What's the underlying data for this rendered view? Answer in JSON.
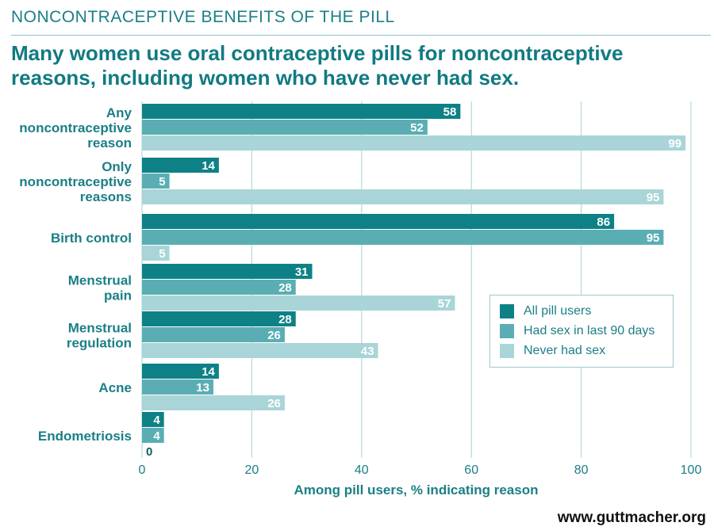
{
  "header": {
    "kicker": "NONCONTRACEPTIVE BENEFITS OF THE PILL",
    "headline": "Many women use oral contraceptive pills for noncontraceptive reasons, including women who have never had sex."
  },
  "footer": {
    "url": "www.guttmacher.org"
  },
  "colors": {
    "all_pill_users": "#0e8186",
    "had_sex_last_90_days": "#5aaeb3",
    "never_had_sex": "#a9d5d8",
    "text": "#1a7f86",
    "grid": "#b7d8da"
  },
  "chart_data": {
    "type": "bar",
    "orientation": "horizontal",
    "title": "Many women use oral contraceptive pills for noncontraceptive reasons, including women who have never had sex.",
    "xlabel": "Among pill users, % indicating reason",
    "ylabel": "",
    "xlim": [
      0,
      100
    ],
    "xticks": [
      0,
      20,
      40,
      60,
      80,
      100
    ],
    "grid": true,
    "legend_position": "right",
    "categories": [
      [
        "Any",
        "noncontraceptive",
        "reason"
      ],
      [
        "Only",
        "noncontraceptive",
        "reasons"
      ],
      [
        "Birth control"
      ],
      [
        "Menstrual",
        "pain"
      ],
      [
        "Menstrual",
        "regulation"
      ],
      [
        "Acne"
      ],
      [
        "Endometriosis"
      ]
    ],
    "series": [
      {
        "name": "All pill users",
        "values": [
          58,
          14,
          86,
          31,
          28,
          14,
          4
        ]
      },
      {
        "name": "Had sex in last 90 days",
        "values": [
          52,
          5,
          95,
          28,
          26,
          13,
          4
        ]
      },
      {
        "name": "Never had sex",
        "values": [
          99,
          95,
          5,
          57,
          43,
          26,
          0
        ]
      }
    ]
  }
}
